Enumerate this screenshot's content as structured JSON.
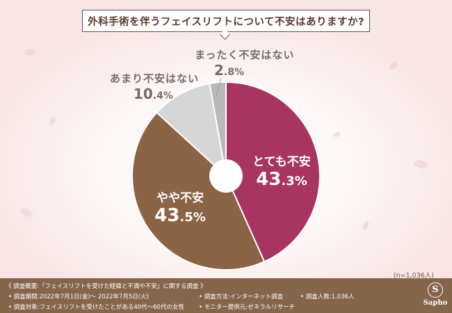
{
  "title": "外科手術を伴うフェイスリフトについて不安はありますか?",
  "chart_data": {
    "type": "pie",
    "title": "外科手術を伴うフェイスリフトについて不安はありますか?",
    "slices": [
      {
        "label": "とても不安",
        "value": 43.3,
        "display": "43.3%",
        "color": "#a83460"
      },
      {
        "label": "やや不安",
        "value": 43.5,
        "display": "43.5%",
        "color": "#8a6445"
      },
      {
        "label": "あまり不安はない",
        "value": 10.4,
        "display": "10.4%",
        "color": "#d6d6d6"
      },
      {
        "label": "まったく不安はない",
        "value": 2.8,
        "display": "2.8%",
        "color": "#b9b9b9"
      }
    ],
    "start": "12 o'clock, clockwise",
    "donut_hole": true
  },
  "labels": {
    "very_anxious": {
      "name": "とても不安",
      "pct_int": "43",
      "pct_dec": ".3%"
    },
    "somewhat_anxious": {
      "name": "やや不安",
      "pct_int": "43",
      "pct_dec": ".5%"
    },
    "not_much": {
      "name": "あまり不安はない",
      "pct_int": "10",
      "pct_dec": ".4%"
    },
    "not_at_all": {
      "name": "まったく不安はない",
      "pct_int": "2",
      "pct_dec": ".8%"
    }
  },
  "sample_note": "(n=1,036人)",
  "footer": {
    "overview": "《 調査概要:「フェイスリフトを受けた経緯と不満や不安」に関する調査 》",
    "period": "• 調査期間:2022年7月1日(金)〜 2022年7月5日(火)",
    "method": "• 調査方法:インターネット調査",
    "count": "• 調査人数:1,036人",
    "target": "• 調査対象:フェイスリフトを受けたことがある40代〜60代の女性",
    "provider": "• モニター提供元:ゼネラルリサーチ",
    "logo_text": "Sapho",
    "logo_mark": "S"
  }
}
